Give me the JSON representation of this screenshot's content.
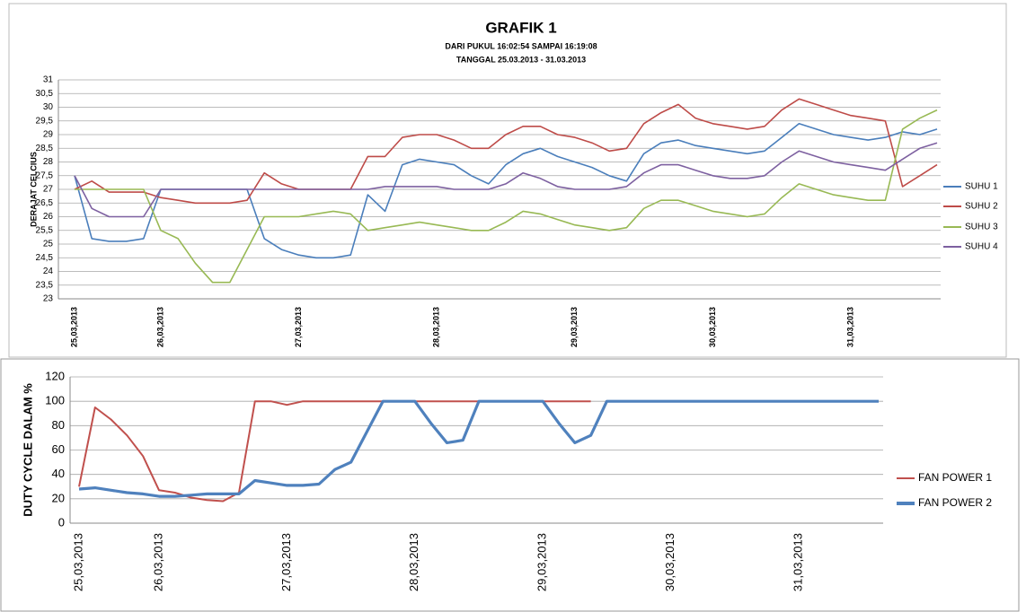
{
  "chart_data": [
    {
      "type": "line",
      "title": "GRAFIK 1",
      "subtitle": [
        "DARI PUKUL 16:02:54 SAMPAI 16:19:08",
        "TANGGAL 25.03.2013 - 31.03.2013"
      ],
      "y_label": "DERAJAT CELCIUS",
      "legend": "right",
      "grid": true,
      "categories": [
        "25,03,2013",
        null,
        null,
        null,
        null,
        "26,03,2013",
        null,
        null,
        null,
        null,
        null,
        null,
        null,
        "27,03,2013",
        null,
        null,
        null,
        null,
        null,
        null,
        null,
        "28,03,2013",
        null,
        null,
        null,
        null,
        null,
        null,
        null,
        "29,03,2013",
        null,
        null,
        null,
        null,
        null,
        null,
        null,
        "30,03,2013",
        null,
        null,
        null,
        null,
        null,
        null,
        null,
        "31,03,2013",
        null,
        null,
        null,
        null,
        null
      ],
      "ylim": [
        23,
        31
      ],
      "yticks": [
        23,
        {
          "value": 23.5,
          "label": "23,5"
        },
        24,
        {
          "value": 24.5,
          "label": "24,5"
        },
        25,
        {
          "value": 25.5,
          "label": "25,5"
        },
        26,
        {
          "value": 26.5,
          "label": "26,5"
        },
        27,
        {
          "value": 27.5,
          "label": "27,5"
        },
        28,
        {
          "value": 28.5,
          "label": "28,5"
        },
        29,
        {
          "value": 29.5,
          "label": "29,5"
        },
        30,
        {
          "value": 30.5,
          "label": "30,5"
        },
        31
      ],
      "series": [
        {
          "name": "SUHU 1",
          "color": "#4a7ebb",
          "values": [
            27.5,
            25.2,
            25.1,
            25.1,
            25.2,
            27,
            27,
            27,
            27,
            27,
            27,
            25.2,
            24.8,
            24.6,
            24.5,
            24.5,
            24.6,
            26.8,
            26.2,
            27.9,
            28.1,
            28,
            27.9,
            27.5,
            27.2,
            27.9,
            28.3,
            28.5,
            28.2,
            28,
            27.8,
            27.5,
            27.3,
            28.3,
            28.7,
            28.8,
            28.6,
            28.5,
            28.4,
            28.3,
            28.4,
            28.9,
            29.4,
            29.2,
            29,
            28.9,
            28.8,
            28.9,
            29.1,
            29,
            29.2
          ]
        },
        {
          "name": "SUHU 2",
          "color": "#be4b48",
          "values": [
            27,
            27.3,
            26.9,
            26.9,
            26.9,
            26.7,
            26.6,
            26.5,
            26.5,
            26.5,
            26.6,
            27.6,
            27.2,
            27,
            27,
            27,
            27,
            28.2,
            28.2,
            28.9,
            29,
            29,
            28.8,
            28.5,
            28.5,
            29,
            29.3,
            29.3,
            29,
            28.9,
            28.7,
            28.4,
            28.5,
            29.4,
            29.8,
            30.1,
            29.6,
            29.4,
            29.3,
            29.2,
            29.3,
            29.9,
            30.3,
            30.1,
            29.9,
            29.7,
            29.6,
            29.5,
            27.1,
            27.5,
            27.9
          ]
        },
        {
          "name": "SUHU 3",
          "color": "#98b954",
          "values": [
            27,
            27,
            27,
            27,
            27,
            25.5,
            25.2,
            24.3,
            23.6,
            23.6,
            24.8,
            26,
            26,
            26,
            26.1,
            26.2,
            26.1,
            25.5,
            25.6,
            25.7,
            25.8,
            25.7,
            25.6,
            25.5,
            25.5,
            25.8,
            26.2,
            26.1,
            25.9,
            25.7,
            25.6,
            25.5,
            25.6,
            26.3,
            26.6,
            26.6,
            26.4,
            26.2,
            26.1,
            26,
            26.1,
            26.7,
            27.2,
            27,
            26.8,
            26.7,
            26.6,
            26.6,
            29.2,
            29.6,
            29.9
          ]
        },
        {
          "name": "SUHU 4",
          "color": "#7d60a0",
          "values": [
            27.5,
            26.3,
            26,
            26,
            26,
            27,
            27,
            27,
            27,
            27,
            27,
            27,
            27,
            27,
            27,
            27,
            27,
            27,
            27.1,
            27.1,
            27.1,
            27.1,
            27,
            27,
            27,
            27.2,
            27.6,
            27.4,
            27.1,
            27,
            27,
            27,
            27.1,
            27.6,
            27.9,
            27.9,
            27.7,
            27.5,
            27.4,
            27.4,
            27.5,
            28,
            28.4,
            28.2,
            28,
            27.9,
            27.8,
            27.7,
            28.1,
            28.5,
            28.7
          ]
        }
      ]
    },
    {
      "type": "line",
      "y_label": "DUTY CYCLE DALAM %",
      "legend": "right",
      "grid": true,
      "categories": [
        "25,03,2013",
        null,
        null,
        null,
        null,
        "26,03,2013",
        null,
        null,
        null,
        null,
        null,
        null,
        null,
        "27,03,2013",
        null,
        null,
        null,
        null,
        null,
        null,
        null,
        "28,03,2013",
        null,
        null,
        null,
        null,
        null,
        null,
        null,
        "29,03,2013",
        null,
        null,
        null,
        null,
        null,
        null,
        null,
        "30,03,2013",
        null,
        null,
        null,
        null,
        null,
        null,
        null,
        "31,03,2013",
        null,
        null,
        null,
        null,
        null
      ],
      "ylim": [
        0,
        120
      ],
      "yticks": [
        0,
        20,
        40,
        60,
        80,
        100,
        120
      ],
      "series": [
        {
          "name": "FAN POWER 1",
          "color": "#c0504d",
          "values": [
            30,
            95,
            85,
            72,
            55,
            27,
            25,
            21,
            19,
            18,
            25,
            100,
            100,
            97,
            100,
            100,
            100,
            100,
            100,
            100,
            100,
            100,
            100,
            100,
            100,
            100,
            100,
            100,
            100,
            100,
            100,
            100,
            100,
            null,
            null,
            null,
            null,
            null,
            null,
            null,
            null,
            null,
            null,
            null,
            null,
            null,
            null,
            null,
            null,
            null,
            null
          ]
        },
        {
          "name": "FAN POWER 2",
          "color": "#4f81bd",
          "values": [
            28,
            29,
            27,
            25,
            24,
            22,
            22,
            23,
            24,
            24,
            24,
            35,
            33,
            31,
            31,
            32,
            44,
            50,
            75,
            100,
            100,
            100,
            82,
            66,
            68,
            100,
            100,
            100,
            100,
            100,
            82,
            66,
            72,
            100,
            100,
            100,
            100,
            100,
            100,
            100,
            100,
            100,
            100,
            100,
            100,
            100,
            100,
            100,
            100,
            100,
            100
          ]
        }
      ]
    }
  ]
}
